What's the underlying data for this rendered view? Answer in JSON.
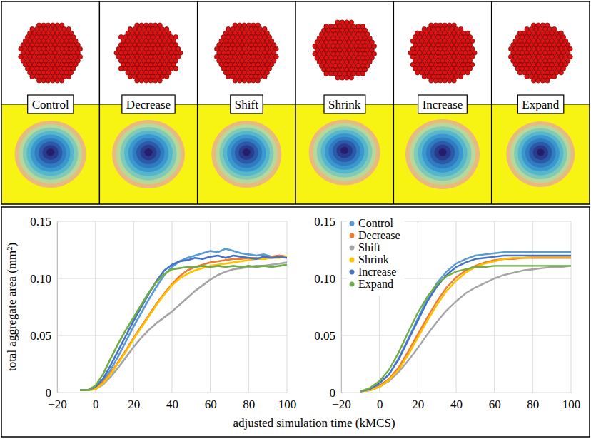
{
  "panel_labels": [
    "Control",
    "Decrease",
    "Shift",
    "Shrink",
    "Increase",
    "Expand"
  ],
  "x_label": "adjusted simulation time (kMCS)",
  "chart_data": [
    {
      "type": "line",
      "y_label": "total aggregate area (mm²)",
      "x": [
        -8,
        -4,
        0,
        4,
        8,
        12,
        16,
        20,
        24,
        28,
        32,
        36,
        40,
        44,
        48,
        52,
        56,
        60,
        64,
        68,
        72,
        76,
        80,
        84,
        88,
        92,
        96,
        100
      ],
      "series": [
        {
          "name": "Control",
          "color": "#5b9bd5",
          "values": [
            0.002,
            0.002,
            0.004,
            0.01,
            0.02,
            0.032,
            0.045,
            0.058,
            0.07,
            0.082,
            0.093,
            0.103,
            0.11,
            0.115,
            0.118,
            0.12,
            0.122,
            0.124,
            0.123,
            0.126,
            0.124,
            0.122,
            0.121,
            0.12,
            0.121,
            0.119,
            0.12,
            0.119
          ]
        },
        {
          "name": "Decrease",
          "color": "#ed7d31",
          "values": [
            0.002,
            0.002,
            0.004,
            0.009,
            0.017,
            0.027,
            0.037,
            0.048,
            0.058,
            0.068,
            0.078,
            0.087,
            0.095,
            0.102,
            0.107,
            0.11,
            0.112,
            0.114,
            0.115,
            0.116,
            0.117,
            0.117,
            0.118,
            0.118,
            0.117,
            0.119,
            0.12,
            0.119
          ]
        },
        {
          "name": "Shift",
          "color": "#a5a5a5",
          "values": [
            0.002,
            0.002,
            0.003,
            0.007,
            0.014,
            0.022,
            0.031,
            0.04,
            0.048,
            0.055,
            0.061,
            0.066,
            0.071,
            0.077,
            0.083,
            0.089,
            0.094,
            0.099,
            0.103,
            0.106,
            0.108,
            0.109,
            0.11,
            0.111,
            0.111,
            0.112,
            0.113,
            0.114
          ]
        },
        {
          "name": "Shrink",
          "color": "#ffc000",
          "values": [
            0.002,
            0.002,
            0.003,
            0.008,
            0.016,
            0.026,
            0.036,
            0.047,
            0.057,
            0.067,
            0.077,
            0.086,
            0.094,
            0.1,
            0.104,
            0.107,
            0.109,
            0.111,
            0.112,
            0.113,
            0.114,
            0.115,
            0.116,
            0.117,
            0.117,
            0.118,
            0.118,
            0.119
          ]
        },
        {
          "name": "Increase",
          "color": "#4472c4",
          "values": [
            0.002,
            0.002,
            0.005,
            0.012,
            0.024,
            0.037,
            0.05,
            0.063,
            0.075,
            0.087,
            0.098,
            0.107,
            0.112,
            0.115,
            0.116,
            0.118,
            0.117,
            0.119,
            0.12,
            0.118,
            0.12,
            0.119,
            0.118,
            0.117,
            0.119,
            0.118,
            0.119,
            0.118
          ]
        },
        {
          "name": "Expand",
          "color": "#70ad47",
          "values": [
            0.002,
            0.002,
            0.006,
            0.016,
            0.03,
            0.043,
            0.055,
            0.066,
            0.077,
            0.088,
            0.097,
            0.104,
            0.108,
            0.109,
            0.11,
            0.11,
            0.111,
            0.11,
            0.111,
            0.11,
            0.111,
            0.11,
            0.111,
            0.11,
            0.111,
            0.11,
            0.111,
            0.112
          ]
        }
      ],
      "xlim": [
        -20,
        100
      ],
      "xticks": [
        {
          "value": -20,
          "label": "−20"
        },
        0,
        20,
        40,
        60,
        80,
        100
      ],
      "ylim": [
        0,
        0.15
      ],
      "yticks": [
        0,
        0.05,
        {
          "value": 0.1,
          "label": "0.10"
        },
        0.15
      ],
      "grid": true
    },
    {
      "type": "line",
      "x": [
        -10,
        -5,
        0,
        5,
        10,
        15,
        20,
        25,
        30,
        35,
        40,
        45,
        50,
        55,
        60,
        65,
        70,
        75,
        80,
        85,
        90,
        95,
        100
      ],
      "series": [
        {
          "name": "Control",
          "color": "#5b9bd5",
          "values": [
            0.001,
            0.003,
            0.008,
            0.016,
            0.03,
            0.047,
            0.065,
            0.082,
            0.096,
            0.106,
            0.113,
            0.117,
            0.12,
            0.121,
            0.122,
            0.123,
            0.123,
            0.123,
            0.123,
            0.123,
            0.123,
            0.123,
            0.123
          ]
        },
        {
          "name": "Decrease",
          "color": "#ed7d31",
          "values": [
            0.001,
            0.002,
            0.006,
            0.012,
            0.022,
            0.036,
            0.051,
            0.066,
            0.08,
            0.092,
            0.101,
            0.107,
            0.111,
            0.114,
            0.116,
            0.117,
            0.117,
            0.118,
            0.118,
            0.118,
            0.118,
            0.118,
            0.118
          ]
        },
        {
          "name": "Shift",
          "color": "#a5a5a5",
          "values": [
            0.001,
            0.002,
            0.005,
            0.01,
            0.018,
            0.028,
            0.039,
            0.051,
            0.062,
            0.072,
            0.08,
            0.087,
            0.092,
            0.096,
            0.1,
            0.103,
            0.105,
            0.107,
            0.108,
            0.109,
            0.11,
            0.11,
            0.111
          ]
        },
        {
          "name": "Shrink",
          "color": "#ffc000",
          "values": [
            0.001,
            0.002,
            0.005,
            0.011,
            0.02,
            0.033,
            0.048,
            0.063,
            0.077,
            0.089,
            0.098,
            0.105,
            0.11,
            0.113,
            0.115,
            0.117,
            0.118,
            0.118,
            0.119,
            0.119,
            0.119,
            0.119,
            0.119
          ]
        },
        {
          "name": "Increase",
          "color": "#4472c4",
          "values": [
            0.001,
            0.003,
            0.008,
            0.016,
            0.029,
            0.046,
            0.063,
            0.08,
            0.093,
            0.103,
            0.11,
            0.114,
            0.117,
            0.118,
            0.119,
            0.12,
            0.12,
            0.12,
            0.12,
            0.12,
            0.12,
            0.12,
            0.12
          ]
        },
        {
          "name": "Expand",
          "color": "#70ad47",
          "values": [
            0.001,
            0.004,
            0.01,
            0.02,
            0.035,
            0.053,
            0.07,
            0.084,
            0.095,
            0.102,
            0.106,
            0.108,
            0.11,
            0.11,
            0.111,
            0.111,
            0.111,
            0.111,
            0.111,
            0.111,
            0.111,
            0.111,
            0.111
          ]
        }
      ],
      "xlim": [
        -20,
        100
      ],
      "xticks": [
        {
          "value": -20,
          "label": "−20"
        },
        0,
        20,
        40,
        60,
        80,
        100
      ],
      "ylim": [
        0,
        0.15
      ],
      "yticks": [
        0,
        0.05,
        {
          "value": 0.1,
          "label": "0.10"
        },
        0.15
      ],
      "grid": true,
      "legend": "top-left"
    }
  ]
}
